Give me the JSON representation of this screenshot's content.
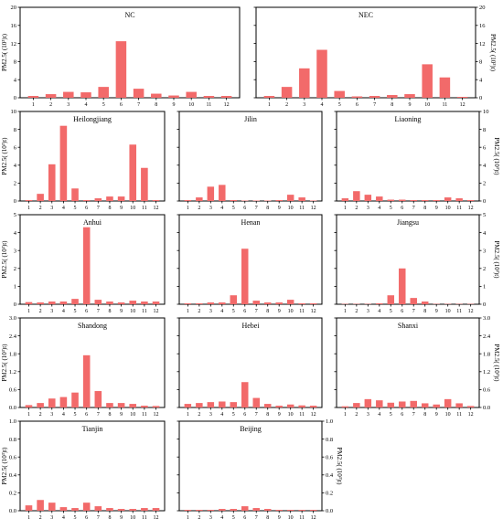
{
  "ylabel": "PM2.5( (10³)t)",
  "chart_data": [
    {
      "type": "bar",
      "title": "NC",
      "ylim": [
        0,
        20
      ],
      "yticks": [
        "0",
        "4",
        "8",
        "12",
        "16",
        "20"
      ],
      "yside": "left",
      "categories": [
        "1",
        "2",
        "3",
        "4",
        "5",
        "6",
        "7",
        "8",
        "9",
        "10",
        "11",
        "12"
      ],
      "values": [
        0.4,
        0.8,
        1.3,
        1.2,
        2.4,
        12.5,
        2.0,
        0.9,
        0.5,
        1.3,
        0.4,
        0.4
      ]
    },
    {
      "type": "bar",
      "title": "NEC",
      "ylim": [
        0,
        20
      ],
      "yticks": [
        "0",
        "4",
        "8",
        "12",
        "16",
        "20"
      ],
      "yside": "right",
      "categories": [
        "1",
        "2",
        "3",
        "4",
        "5",
        "6",
        "7",
        "8",
        "9",
        "10",
        "11",
        "12"
      ],
      "values": [
        0.4,
        2.4,
        6.5,
        10.6,
        1.5,
        0.3,
        0.4,
        0.6,
        0.8,
        7.4,
        4.5,
        0.2
      ]
    },
    {
      "type": "bar",
      "title": "Heilongjiang",
      "ylim": [
        0,
        10
      ],
      "yticks": [
        "0",
        "2",
        "4",
        "6",
        "8",
        "10"
      ],
      "yside": "left",
      "categories": [
        "1",
        "2",
        "3",
        "4",
        "5",
        "6",
        "7",
        "8",
        "9",
        "10",
        "11",
        "12"
      ],
      "values": [
        0.1,
        0.8,
        4.1,
        8.4,
        1.4,
        0.1,
        0.3,
        0.5,
        0.5,
        6.3,
        3.7,
        0.1
      ]
    },
    {
      "type": "bar",
      "title": "Jilin",
      "ylim": [
        0,
        10
      ],
      "yticks": [
        "0",
        "2",
        "4",
        "6",
        "8",
        "10"
      ],
      "yside": "none",
      "categories": [
        "1",
        "2",
        "3",
        "4",
        "5",
        "6",
        "7",
        "8",
        "9",
        "10",
        "11",
        "12"
      ],
      "values": [
        0.1,
        0.4,
        1.6,
        1.8,
        0.1,
        0.05,
        0.05,
        0.05,
        0.1,
        0.7,
        0.4,
        0.05
      ]
    },
    {
      "type": "bar",
      "title": "Liaoning",
      "ylim": [
        0,
        10
      ],
      "yticks": [
        "0",
        "2",
        "4",
        "6",
        "8",
        "10"
      ],
      "yside": "right",
      "categories": [
        "1",
        "2",
        "3",
        "4",
        "5",
        "6",
        "7",
        "8",
        "9",
        "10",
        "11",
        "12"
      ],
      "values": [
        0.3,
        1.1,
        0.7,
        0.5,
        0.15,
        0.15,
        0.1,
        0.1,
        0.1,
        0.4,
        0.3,
        0.1
      ]
    },
    {
      "type": "bar",
      "title": "Anhui",
      "ylim": [
        0,
        5
      ],
      "yticks": [
        "0",
        "1",
        "2",
        "3",
        "4",
        "5"
      ],
      "yside": "left",
      "categories": [
        "1",
        "2",
        "3",
        "4",
        "5",
        "6",
        "7",
        "8",
        "9",
        "10",
        "11",
        "12"
      ],
      "values": [
        0.12,
        0.1,
        0.15,
        0.15,
        0.3,
        4.3,
        0.25,
        0.15,
        0.1,
        0.2,
        0.15,
        0.15
      ]
    },
    {
      "type": "bar",
      "title": "Henan",
      "ylim": [
        0,
        5
      ],
      "yticks": [
        "0",
        "1",
        "2",
        "3",
        "4",
        "5"
      ],
      "yside": "none",
      "categories": [
        "1",
        "2",
        "3",
        "4",
        "5",
        "6",
        "7",
        "8",
        "9",
        "10",
        "11",
        "12"
      ],
      "values": [
        0.05,
        0.05,
        0.1,
        0.1,
        0.5,
        3.1,
        0.2,
        0.1,
        0.1,
        0.25,
        0.05,
        0.05
      ]
    },
    {
      "type": "bar",
      "title": "Jiangsu",
      "ylim": [
        0,
        5
      ],
      "yticks": [
        "0",
        "1",
        "2",
        "3",
        "4",
        "5"
      ],
      "yside": "right",
      "categories": [
        "1",
        "2",
        "3",
        "4",
        "5",
        "6",
        "7",
        "8",
        "9",
        "10",
        "11",
        "12"
      ],
      "values": [
        0.02,
        0.02,
        0.02,
        0.05,
        0.5,
        2.0,
        0.35,
        0.15,
        0.02,
        0.02,
        0.02,
        0.02
      ]
    },
    {
      "type": "bar",
      "title": "Shandong",
      "ylim": [
        0,
        3.0
      ],
      "yticks": [
        "0.0",
        "0.6",
        "1.2",
        "1.8",
        "2.4",
        "3.0"
      ],
      "yside": "left",
      "categories": [
        "1",
        "2",
        "3",
        "4",
        "5",
        "6",
        "7",
        "8",
        "9",
        "10",
        "11",
        "12"
      ],
      "values": [
        0.08,
        0.15,
        0.3,
        0.35,
        0.5,
        1.75,
        0.55,
        0.15,
        0.15,
        0.12,
        0.06,
        0.05
      ]
    },
    {
      "type": "bar",
      "title": "Hebei",
      "ylim": [
        0,
        3.0
      ],
      "yticks": [
        "0.0",
        "0.6",
        "1.2",
        "1.8",
        "2.4",
        "3.0"
      ],
      "yside": "none",
      "categories": [
        "1",
        "2",
        "3",
        "4",
        "5",
        "6",
        "7",
        "8",
        "9",
        "10",
        "11",
        "12"
      ],
      "values": [
        0.12,
        0.15,
        0.18,
        0.2,
        0.18,
        0.85,
        0.32,
        0.12,
        0.06,
        0.1,
        0.07,
        0.06
      ]
    },
    {
      "type": "bar",
      "title": "Shanxi",
      "ylim": [
        0,
        3.0
      ],
      "yticks": [
        "0.0",
        "0.6",
        "1.2",
        "1.8",
        "2.4",
        "3.0"
      ],
      "yside": "right",
      "categories": [
        "1",
        "2",
        "3",
        "4",
        "5",
        "6",
        "7",
        "8",
        "9",
        "10",
        "11",
        "12"
      ],
      "values": [
        0.04,
        0.15,
        0.28,
        0.24,
        0.16,
        0.2,
        0.22,
        0.14,
        0.1,
        0.28,
        0.14,
        0.05
      ]
    },
    {
      "type": "bar",
      "title": "Tianjin",
      "ylim": [
        0,
        1.0
      ],
      "yticks": [
        "0.0",
        "0.2",
        "0.4",
        "0.6",
        "0.8",
        "1.0"
      ],
      "yside": "left",
      "categories": [
        "1",
        "2",
        "3",
        "4",
        "5",
        "6",
        "7",
        "8",
        "9",
        "10",
        "11",
        "12"
      ],
      "values": [
        0.06,
        0.12,
        0.09,
        0.04,
        0.03,
        0.09,
        0.05,
        0.03,
        0.02,
        0.02,
        0.03,
        0.03
      ]
    },
    {
      "type": "bar",
      "title": "Beijing",
      "ylim": [
        0,
        1.0
      ],
      "yticks": [
        "0.0",
        "0.2",
        "0.4",
        "0.6",
        "0.8",
        "1.0"
      ],
      "yside": "right",
      "categories": [
        "1",
        "2",
        "3",
        "4",
        "5",
        "6",
        "7",
        "8",
        "9",
        "10",
        "11",
        "12"
      ],
      "values": [
        0.01,
        0.01,
        0.01,
        0.02,
        0.02,
        0.05,
        0.03,
        0.02,
        0.01,
        0.01,
        0.01,
        0.01
      ]
    }
  ]
}
